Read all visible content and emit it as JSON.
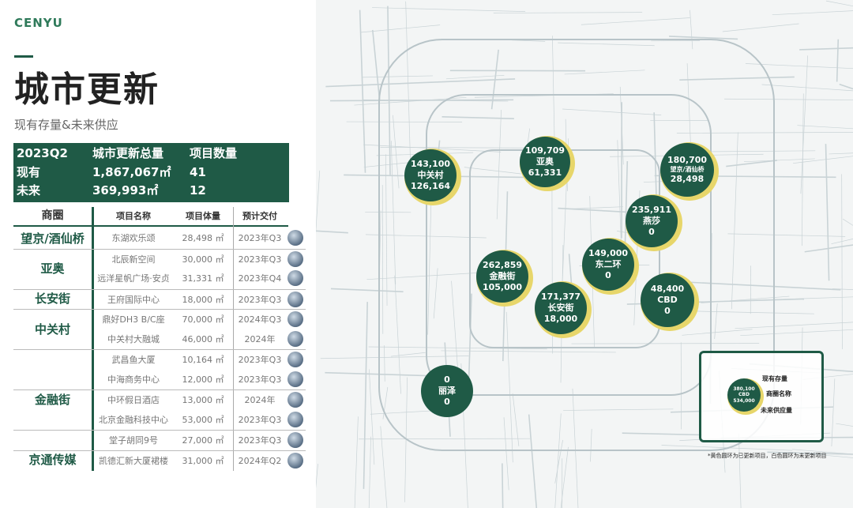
{
  "brand": "CENYU",
  "title": "城市更新",
  "subtitle": "现有存量&未来供应",
  "summary": {
    "header": [
      "2023Q2",
      "城市更新总量",
      "项目数量"
    ],
    "rows": [
      [
        "现有",
        "1,867,067㎡",
        "41"
      ],
      [
        "未来",
        "369,993㎡",
        "12"
      ]
    ]
  },
  "table": {
    "headers": [
      "商圈",
      "项目名称",
      "项目体量",
      "预计交付"
    ],
    "groups": [
      "望京/酒仙桥",
      "亚奥",
      "长安街",
      "中关村",
      "金融街",
      "京通传媒"
    ],
    "rows": [
      {
        "name": "东湖欢乐颂",
        "size": "28,498 ㎡",
        "date": "2023年Q3"
      },
      {
        "name": "北辰新空间",
        "size": "30,000 ㎡",
        "date": "2023年Q3"
      },
      {
        "name": "远洋星帆广场·安贞",
        "size": "31,331 ㎡",
        "date": "2023年Q4"
      },
      {
        "name": "王府国际中心",
        "size": "18,000 ㎡",
        "date": "2023年Q3"
      },
      {
        "name": "鼎好DH3 B/C座",
        "size": "70,000 ㎡",
        "date": "2024年Q3"
      },
      {
        "name": "中关村大融城",
        "size": "46,000 ㎡",
        "date": "2024年"
      },
      {
        "name": "武昌鱼大厦",
        "size": "10,164 ㎡",
        "date": "2023年Q3"
      },
      {
        "name": "中海商务中心",
        "size": "12,000 ㎡",
        "date": "2023年Q3"
      },
      {
        "name": "中环假日酒店",
        "size": "13,000 ㎡",
        "date": "2024年"
      },
      {
        "name": "北京金融科技中心",
        "size": "53,000 ㎡",
        "date": "2023年Q3"
      },
      {
        "name": "堂子胡同9号",
        "size": "27,000 ㎡",
        "date": "2023年Q3"
      },
      {
        "name": "凯德汇新大厦裙楼",
        "size": "31,000 ㎡",
        "date": "2024年Q2"
      }
    ]
  },
  "bubbles": [
    {
      "existing": "143,100",
      "name": "中关村",
      "future": "126,164"
    },
    {
      "existing": "109,709",
      "name": "亚奥",
      "future": "61,331"
    },
    {
      "existing": "180,700",
      "name": "望京/酒仙桥",
      "future": "28,498"
    },
    {
      "existing": "235,911",
      "name": "燕莎",
      "future": "0"
    },
    {
      "existing": "149,000",
      "name": "东二环",
      "future": "0"
    },
    {
      "existing": "262,859",
      "name": "金融街",
      "future": "105,000"
    },
    {
      "existing": "171,377",
      "name": "长安街",
      "future": "18,000"
    },
    {
      "existing": "48,400",
      "name": "CBD",
      "future": "0"
    },
    {
      "existing": "0",
      "name": "丽泽",
      "future": "0"
    }
  ],
  "legend": {
    "sample": {
      "existing": "380,100",
      "name": "CBD",
      "future": "534,000"
    },
    "labels": [
      "现有存量",
      "商圈名称",
      "未来供应量"
    ]
  },
  "note": "*黄色圆环为已更新项目，白色圆环为未更新项目",
  "colors": {
    "primary": "#1f5a46",
    "ring_updated": "#e7d66a",
    "brand": "#2f7a5a"
  }
}
